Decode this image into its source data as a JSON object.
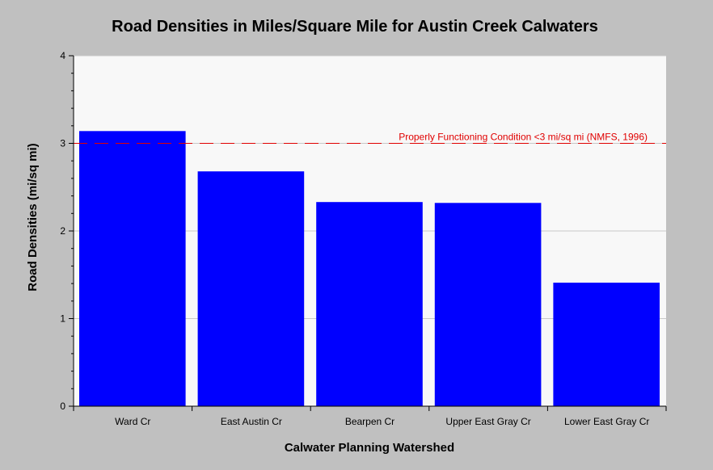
{
  "chart_data": {
    "type": "bar",
    "title": "Road Densities in Miles/Square Mile for Austin Creek Calwaters",
    "xlabel": "Calwater Planning Watershed",
    "ylabel": "Road Densities (mi/sq mi)",
    "categories": [
      "Ward Cr",
      "East Austin Cr",
      "Bearpen Cr",
      "Upper East Gray Cr",
      "Lower East Gray Cr"
    ],
    "values": [
      3.14,
      2.68,
      2.33,
      2.32,
      1.41
    ],
    "ylim": [
      0,
      4
    ],
    "yticks": [
      "0",
      "1",
      "2",
      "3",
      "4"
    ],
    "grid": true,
    "bar_color": "#0000ff",
    "plot_background": "#f8f8f8",
    "reference_line": {
      "value": 3,
      "label": "Properly Functioning Condition <3 mi/sq mi (NMFS, 1996)",
      "color": "#e00000",
      "style": "dashed"
    }
  }
}
